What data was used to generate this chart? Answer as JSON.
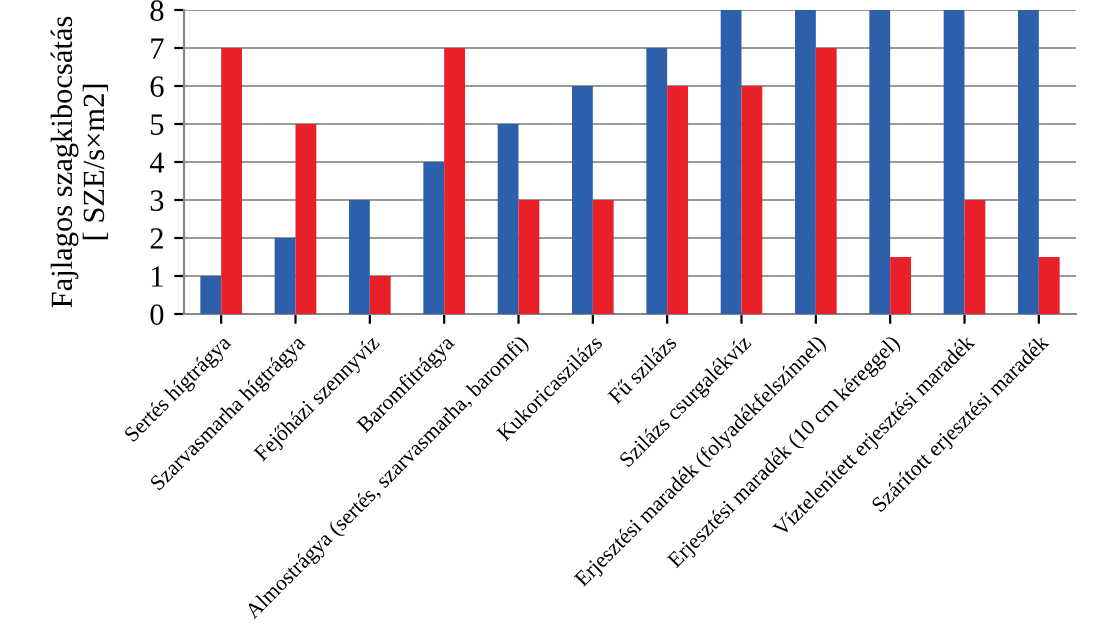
{
  "chart_data": {
    "type": "bar",
    "ylabel": "Fajlagos szagkibocsátás\n[ SZE/s×m2]",
    "categories": [
      "Sertés hígtrágya",
      "Szarvasmarha hígtrágya",
      "Fejőházi szennyvíz",
      "Baromfitrágya",
      "Almostrágya (sertés, szarvasmarha, baromfi)",
      "Kukoricaszilázs",
      "Fű szilázs",
      "Szilázs csurgalékvíz",
      "Erjesztési maradék (folyadékfelszínnel)",
      "Erjesztési maradék (10 cm kéreggel)",
      "Víztelenített erjesztési maradék",
      "Szárított erjesztési maradék"
    ],
    "series": [
      {
        "color": "#2e5faa",
        "values": [
          1,
          2,
          3,
          4,
          5,
          6,
          7,
          8,
          8,
          8,
          8,
          8
        ]
      },
      {
        "color": "#e8202a",
        "values": [
          7,
          5,
          1,
          7,
          3,
          3,
          6,
          6,
          7,
          1.5,
          3,
          1.5
        ]
      }
    ],
    "ylim": [
      0,
      8
    ],
    "yticks": [
      0,
      1,
      2,
      3,
      4,
      5,
      6,
      7,
      8
    ],
    "grid": "y",
    "legend": false
  }
}
